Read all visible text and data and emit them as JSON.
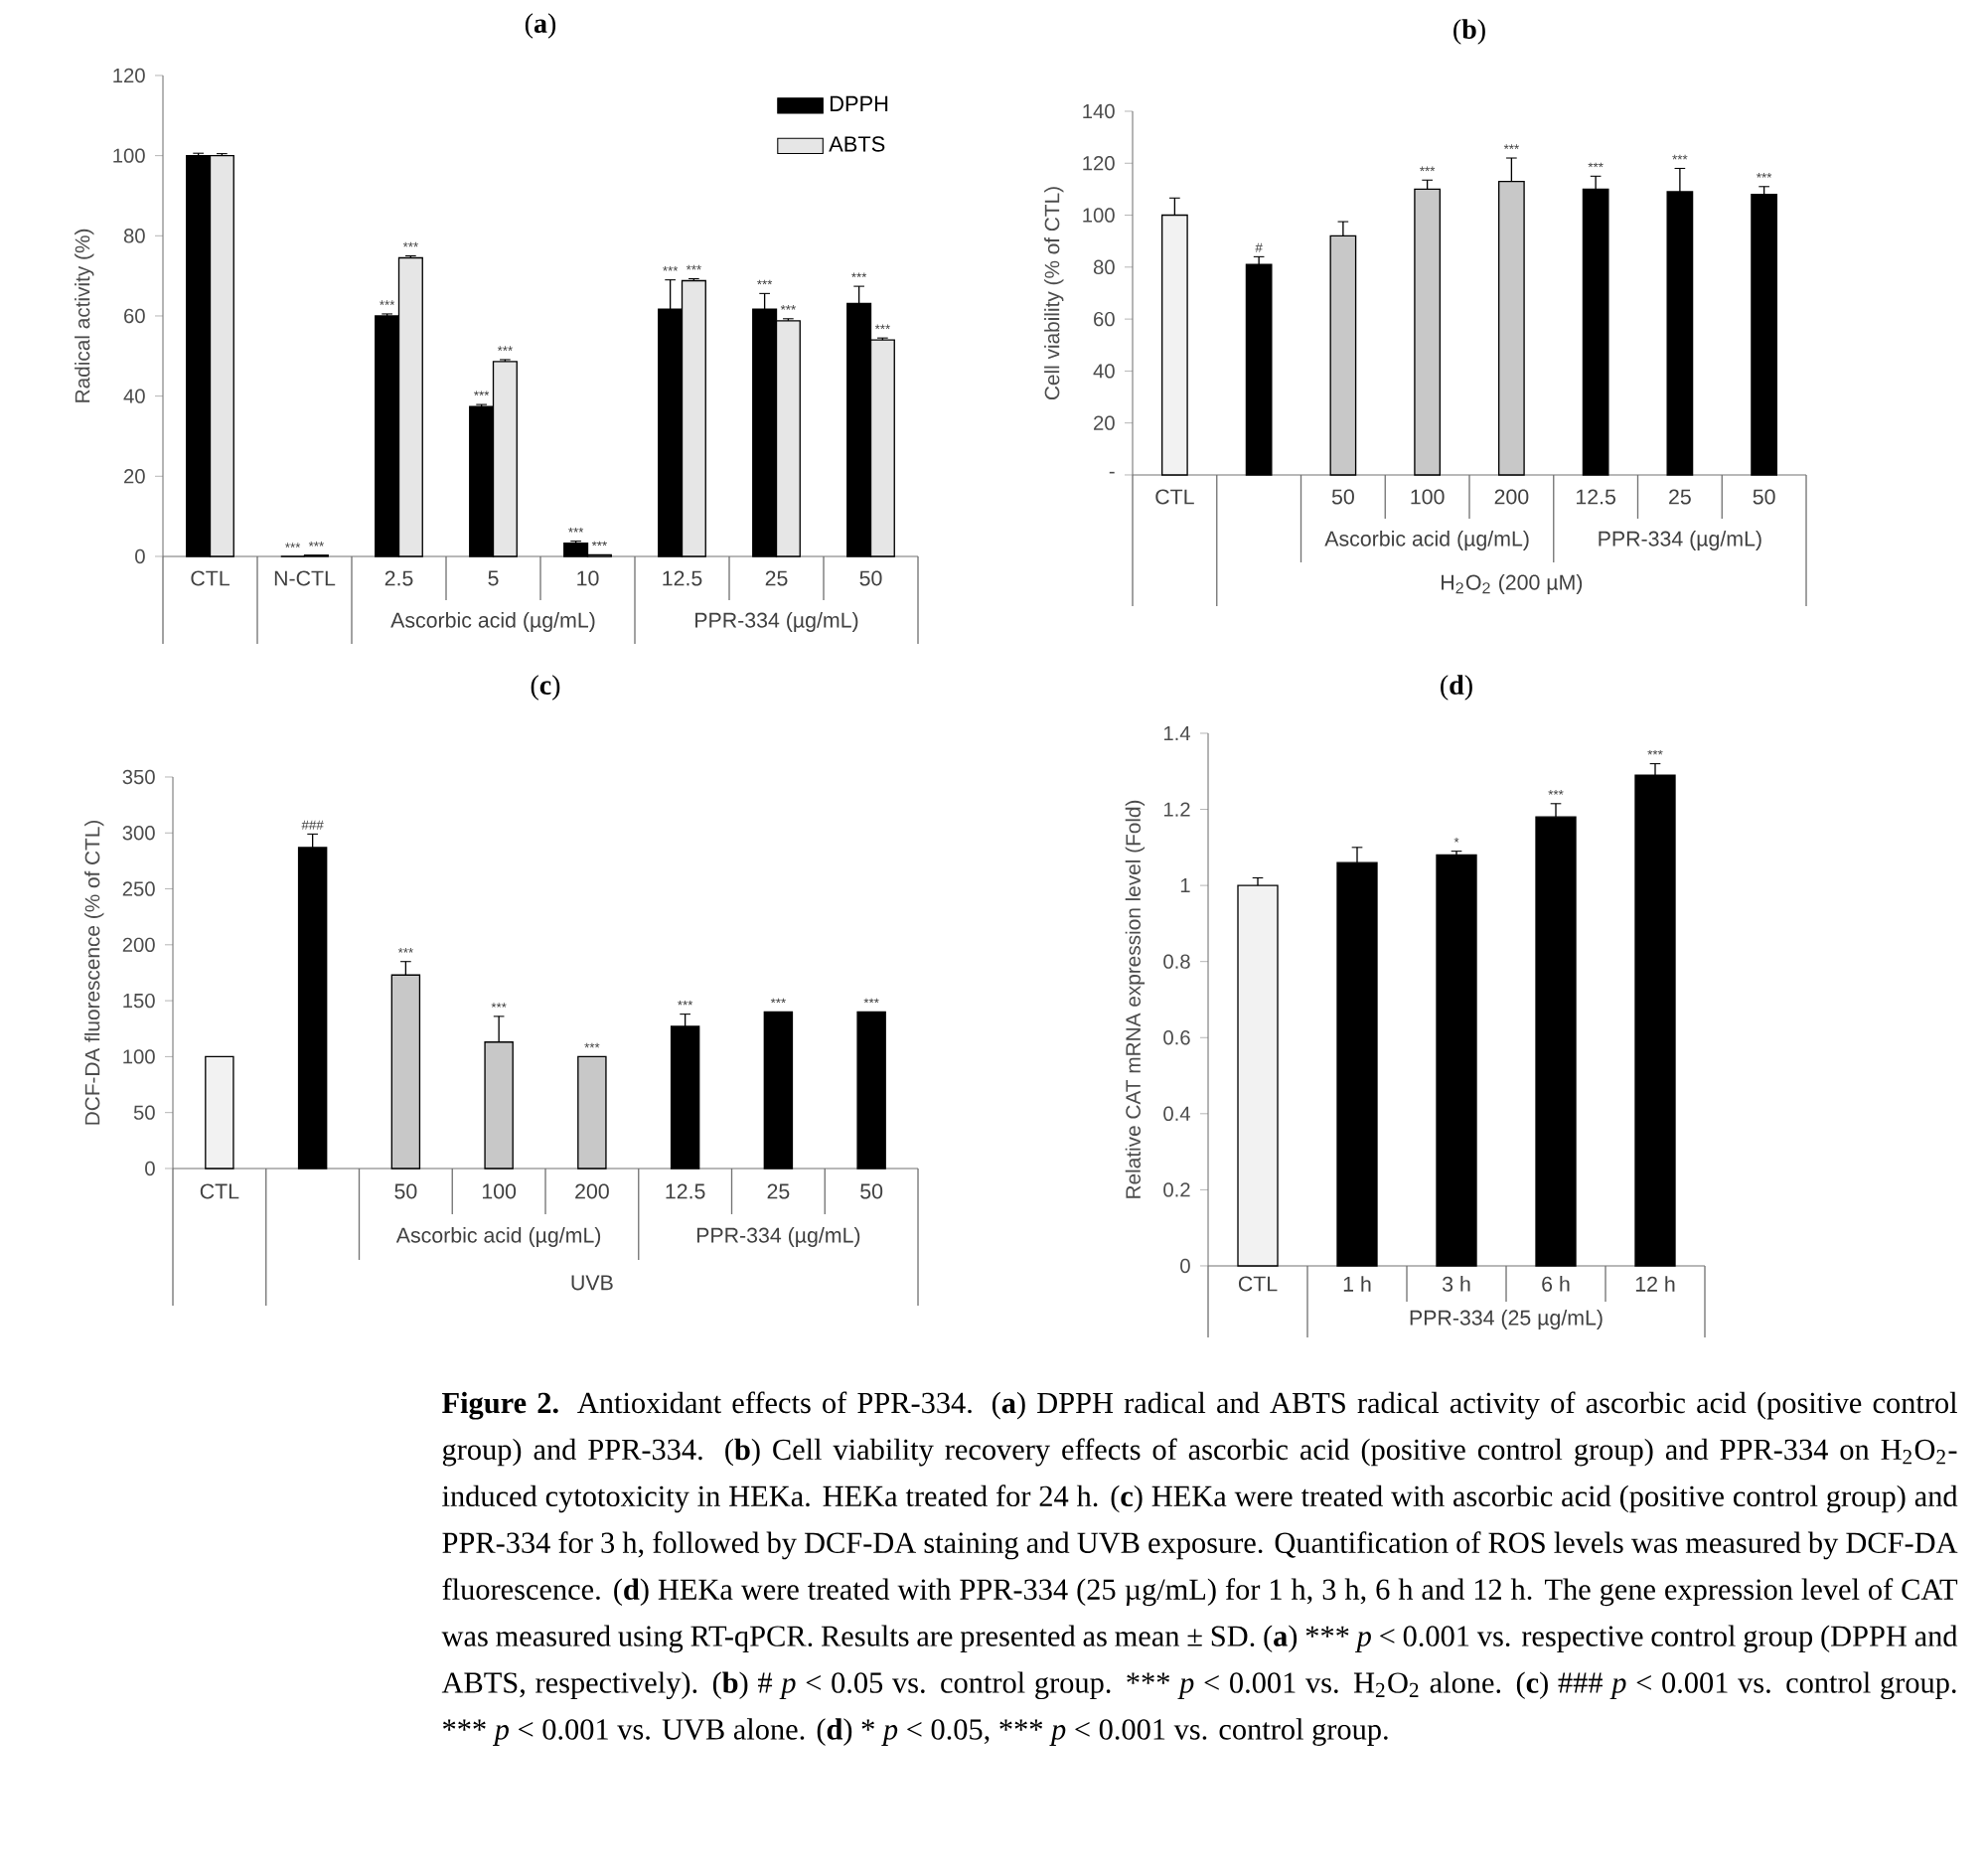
{
  "chart_data": [
    {
      "type": "bar",
      "title": "(**a**)",
      "ylabel": "Radical activity (%)",
      "categories": [
        "CTL",
        "N-CTL",
        "2.5",
        "5",
        "10",
        "12.5",
        "25",
        "50"
      ],
      "series": [
        {
          "name": "DPPH",
          "color": "#000000",
          "values": [
            100,
            0,
            60,
            37.4,
            3.3,
            61.7,
            61.7,
            63.1
          ],
          "errors": [
            0.6,
            null,
            0.5,
            0.5,
            0.5,
            7.3,
            3.9,
            4.3
          ],
          "value_labels": [
            null,
            "***",
            "***",
            "***",
            "***",
            "***",
            "***",
            "***"
          ]
        },
        {
          "name": "ABTS",
          "color": "#e6e6e6",
          "values": [
            100,
            0.3,
            74.5,
            48.6,
            0.4,
            68.8,
            58.8,
            54
          ],
          "errors": [
            0.5,
            null,
            0.5,
            0.5,
            null,
            0.5,
            0.5,
            0.5
          ],
          "value_labels": [
            null,
            "***",
            "***",
            "***",
            "***",
            "***",
            "***",
            "***"
          ]
        }
      ],
      "ylim": [
        0,
        120
      ],
      "yticks": [
        0,
        20,
        40,
        60,
        80,
        100,
        120
      ],
      "legend": "top right",
      "annotations": [
        "Ascorbic acid (µg/mL)",
        "PPR-334 (µg/mL)"
      ]
    },
    {
      "type": "bar",
      "title": "(**b**)",
      "ylabel": "Cell viability (% of CTL)",
      "categories": [
        "CTL",
        null,
        "50",
        "100",
        "200",
        "12.5",
        "25",
        "50"
      ],
      "values": [
        100,
        81,
        92,
        110,
        113,
        110,
        109,
        108
      ],
      "errors": [
        6.6,
        3,
        5.5,
        3.5,
        9,
        5,
        9,
        3
      ],
      "value_labels": [
        null,
        "#",
        null,
        "***",
        "***",
        "***",
        "***",
        "***"
      ],
      "colors": [
        "#f2f2f2",
        "#000000",
        "#c8c8c8",
        "#c8c8c8",
        "#c8c8c8",
        "#000000",
        "#000000",
        "#000000"
      ],
      "ylim": [
        0,
        140
      ],
      "yticks": [
        {
          "value": 0,
          "label": "-"
        },
        20,
        40,
        60,
        80,
        100,
        120,
        140
      ],
      "annotations": [
        "Ascorbic acid (µg/mL)",
        "PPR-334 (µg/mL)",
        "H$_{2}$O$_{2}$ (200 µM)"
      ]
    },
    {
      "type": "bar",
      "title": "(**c**)",
      "ylabel": "DCF-DA fluorescence (% of CTL)",
      "categories": [
        "CTL",
        null,
        "50",
        "100",
        "200",
        "12.5",
        "25",
        "50"
      ],
      "values": [
        100,
        287,
        173,
        113,
        100,
        127,
        140,
        140
      ],
      "errors": [
        null,
        12,
        12,
        23,
        null,
        11,
        null,
        null
      ],
      "value_labels": [
        null,
        "###",
        "***",
        "***",
        "***",
        "***",
        "***",
        "***"
      ],
      "colors": [
        "#f2f2f2",
        "#000000",
        "#c8c8c8",
        "#c8c8c8",
        "#c8c8c8",
        "#000000",
        "#000000",
        "#000000"
      ],
      "ylim": [
        0,
        350
      ],
      "yticks": [
        0,
        50,
        100,
        150,
        200,
        250,
        300,
        350
      ],
      "annotations": [
        "Ascorbic acid (µg/mL)",
        "PPR-334 (µg/mL)",
        "UVB"
      ]
    },
    {
      "type": "bar",
      "title": "(**d**)",
      "ylabel": "Relative CAT mRNA expression level (Fold)",
      "categories": [
        "CTL",
        "1 h",
        "3 h",
        "6 h",
        "12 h"
      ],
      "values": [
        1,
        1.06,
        1.08,
        1.18,
        1.29
      ],
      "errors": [
        0.02,
        0.04,
        0.01,
        0.035,
        0.03
      ],
      "value_labels": [
        null,
        null,
        "*",
        "***",
        "***"
      ],
      "colors": [
        "#f2f2f2",
        "#000000",
        "#000000",
        "#000000",
        "#000000"
      ],
      "ylim": [
        0,
        1.4
      ],
      "yticks": [
        0,
        0.2,
        0.4,
        0.6,
        0.8,
        1,
        1.2,
        1.4
      ],
      "annotations": [
        "PPR-334 (25 µg/mL)"
      ]
    },
    {
      "type": "other",
      "annotations": [
        "**Figure 2.** Antioxidant effects of PPR-334. (**a**) DPPH radical and ABTS radical activity of ascorbic acid (positive control group) and PPR-334. (**b**) Cell viability recovery effects of ascorbic acid (positive control group) and PPR-334 on H$_{2}$O$_{2}$-induced cytotoxicity in HEKa. HEKa treated for 24 h. (**c**) HEKa were treated with ascorbic acid (positive control group) and PPR-334 for 3 h, followed by DCF-DA staining and UVB exposure. Quantification of ROS levels was measured by DCF-DA fluorescence. (**d**) HEKa were treated with PPR-334 (25 µg/mL) for 1 h, 3 h, 6 h and 12 h. The gene expression level of CAT was measured using RT-qPCR. Results are presented as mean ± SD. (**a**)",
        "***",
        "*p*",
        "< 0.001 vs. respective control group (DPPH and ABTS, respectively). (**b**) #",
        "*p*",
        "< 0.05 vs. control group.",
        "***",
        "*p*",
        "< 0.001 vs. H$_{2}$O$_{2}$ alone. (**c**) ###",
        "*p*",
        "< 0.001 vs. control group.",
        "***",
        "*p*",
        "< 0.001 vs. UVB alone. (**d**)",
        "*",
        "*p*",
        "< 0.05,",
        "***",
        "*p*",
        "< 0.001 vs. control group."
      ]
    }
  ]
}
